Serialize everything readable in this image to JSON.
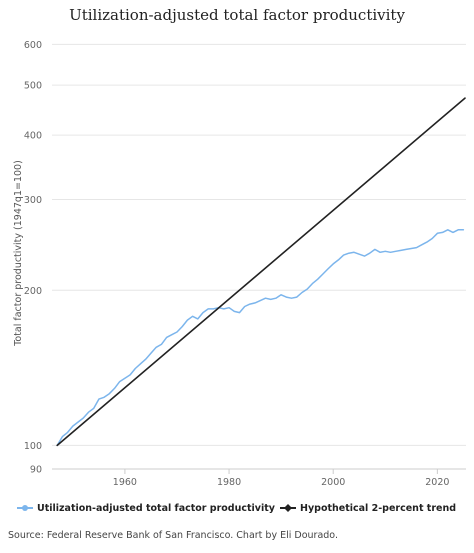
{
  "chart_data": {
    "type": "line",
    "title": "Utilization-adjusted total factor productivity",
    "xlabel": "",
    "ylabel": "Total factor productivity (1947q1=100)",
    "y_scale": "log",
    "xlim": [
      1946,
      2025.5
    ],
    "ylim": [
      90,
      620
    ],
    "x_ticks": [
      1960,
      1980,
      2000,
      2020
    ],
    "y_ticks": [
      90,
      100,
      200,
      300,
      400,
      500,
      600
    ],
    "grid": "horizontal",
    "legend_position": "bottom",
    "series": [
      {
        "name": "Utilization-adjusted total factor productivity",
        "color": "#7cb5ec",
        "marker": "circle",
        "x": [
          1947,
          1948,
          1949,
          1950,
          1951,
          1952,
          1953,
          1954,
          1955,
          1956,
          1957,
          1958,
          1959,
          1960,
          1961,
          1962,
          1963,
          1964,
          1965,
          1966,
          1967,
          1968,
          1969,
          1970,
          1971,
          1972,
          1973,
          1974,
          1975,
          1976,
          1977,
          1978,
          1979,
          1980,
          1981,
          1982,
          1983,
          1984,
          1985,
          1986,
          1987,
          1988,
          1989,
          1990,
          1991,
          1992,
          1993,
          1994,
          1995,
          1996,
          1997,
          1998,
          1999,
          2000,
          2001,
          2002,
          2003,
          2004,
          2005,
          2006,
          2007,
          2008,
          2009,
          2010,
          2011,
          2012,
          2013,
          2014,
          2015,
          2016,
          2017,
          2018,
          2019,
          2020,
          2021,
          2022,
          2023,
          2024,
          2025
        ],
        "values": [
          100,
          104,
          106,
          109,
          111,
          113,
          116,
          118,
          123,
          124,
          126,
          129,
          133,
          135,
          137,
          141,
          144,
          147,
          151,
          155,
          157,
          162,
          164,
          166,
          170,
          175,
          178,
          176,
          181,
          184,
          184,
          185,
          184,
          185,
          182,
          181,
          186,
          188,
          189,
          191,
          193,
          192,
          193,
          196,
          194,
          193,
          194,
          198,
          201,
          206,
          210,
          215,
          220,
          225,
          229,
          234,
          236,
          237,
          235,
          233,
          236,
          240,
          237,
          238,
          237,
          238,
          239,
          240,
          241,
          242,
          245,
          248,
          252,
          258,
          259,
          262,
          259,
          262,
          262
        ]
      },
      {
        "name": "Hypothetical 2-percent trend",
        "color": "#222222",
        "marker": "diamond",
        "x": [
          1947,
          2025.3
        ],
        "values": [
          100,
          472
        ]
      }
    ],
    "source": "Source: Federal Reserve Bank of San Francisco. Chart by Eli Dourado."
  }
}
